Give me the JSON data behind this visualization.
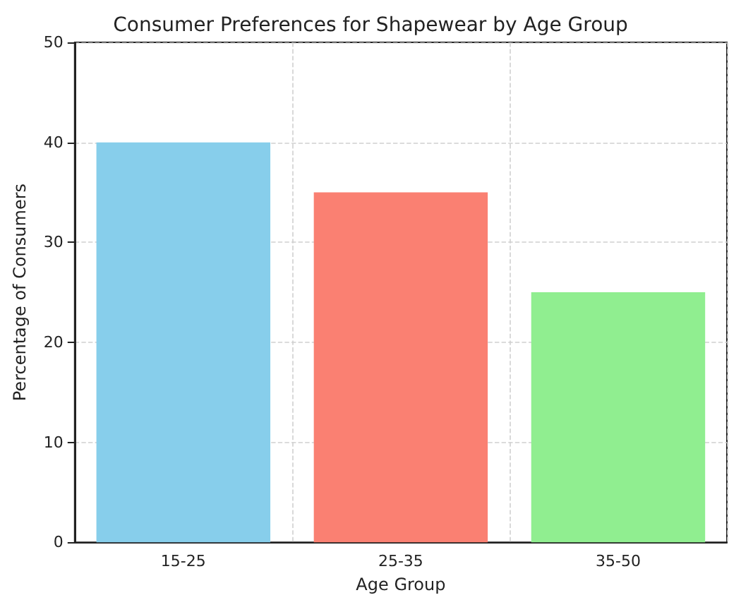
{
  "chart_data": {
    "type": "bar",
    "title": "Consumer Preferences for Shapewear by Age Group",
    "xlabel": "Age Group",
    "ylabel": "Percentage of Consumers",
    "categories": [
      "15-25",
      "25-35",
      "35-50"
    ],
    "values": [
      40,
      35,
      25
    ],
    "colors": [
      "#87ceeb",
      "#fa8072",
      "#90ee90"
    ],
    "ylim": [
      0,
      50
    ],
    "yticks": [
      0,
      10,
      20,
      30,
      40,
      50
    ],
    "grid": true
  }
}
